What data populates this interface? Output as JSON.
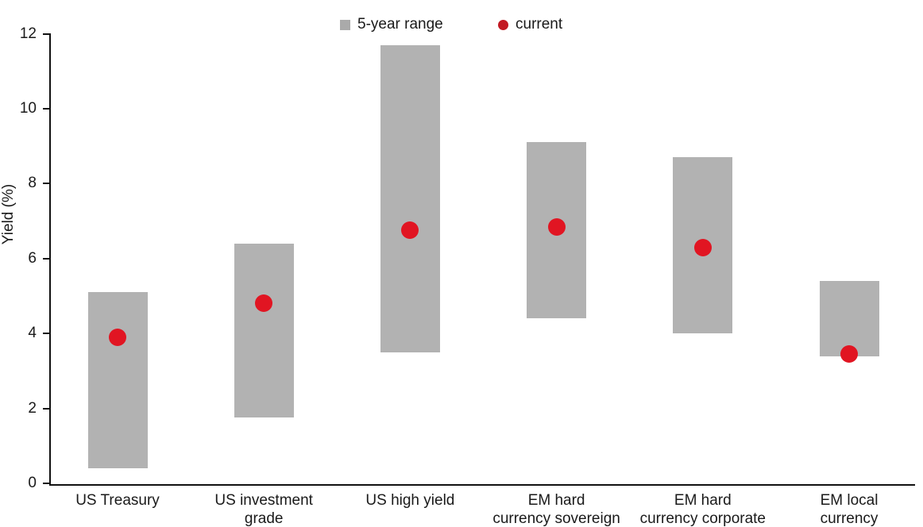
{
  "chart_data": {
    "type": "bar",
    "subtype": "floating-range-bars-with-current-markers",
    "title": "",
    "xlabel": "",
    "ylabel": "Yield (%)",
    "ylim": [
      0,
      12
    ],
    "yticks": [
      0,
      2,
      4,
      6,
      8,
      10,
      12
    ],
    "grid": false,
    "legend_position": "top-center",
    "categories": [
      "US Treasury",
      "US investment grade",
      "US high yield",
      "EM hard currency sovereign",
      "EM hard currency corporate",
      "EM local currency"
    ],
    "category_label_lines": [
      [
        "US Treasury"
      ],
      [
        "US investment",
        "grade"
      ],
      [
        "US high yield"
      ],
      [
        "EM hard",
        "currency sovereign"
      ],
      [
        "EM hard",
        "currency corporate"
      ],
      [
        "EM local",
        "currency"
      ]
    ],
    "series": [
      {
        "name": "5-year range low (%)",
        "values": [
          0.4,
          1.75,
          3.5,
          4.4,
          4.0,
          3.4
        ]
      },
      {
        "name": "5-year range high (%)",
        "values": [
          5.1,
          6.4,
          11.7,
          9.1,
          8.7,
          5.4
        ]
      },
      {
        "name": "current (%)",
        "values": [
          3.9,
          4.8,
          6.75,
          6.85,
          6.3,
          3.45
        ]
      }
    ]
  },
  "legend": {
    "range_label": "5-year range",
    "current_label": "current"
  },
  "colors": {
    "range_bar": "#b2b2b2",
    "legend_square": "#aaaaaa",
    "current_dot": "#e11522",
    "legend_dot": "#c21a23",
    "text": "#1a1a1a",
    "axis_line": "#111111"
  }
}
